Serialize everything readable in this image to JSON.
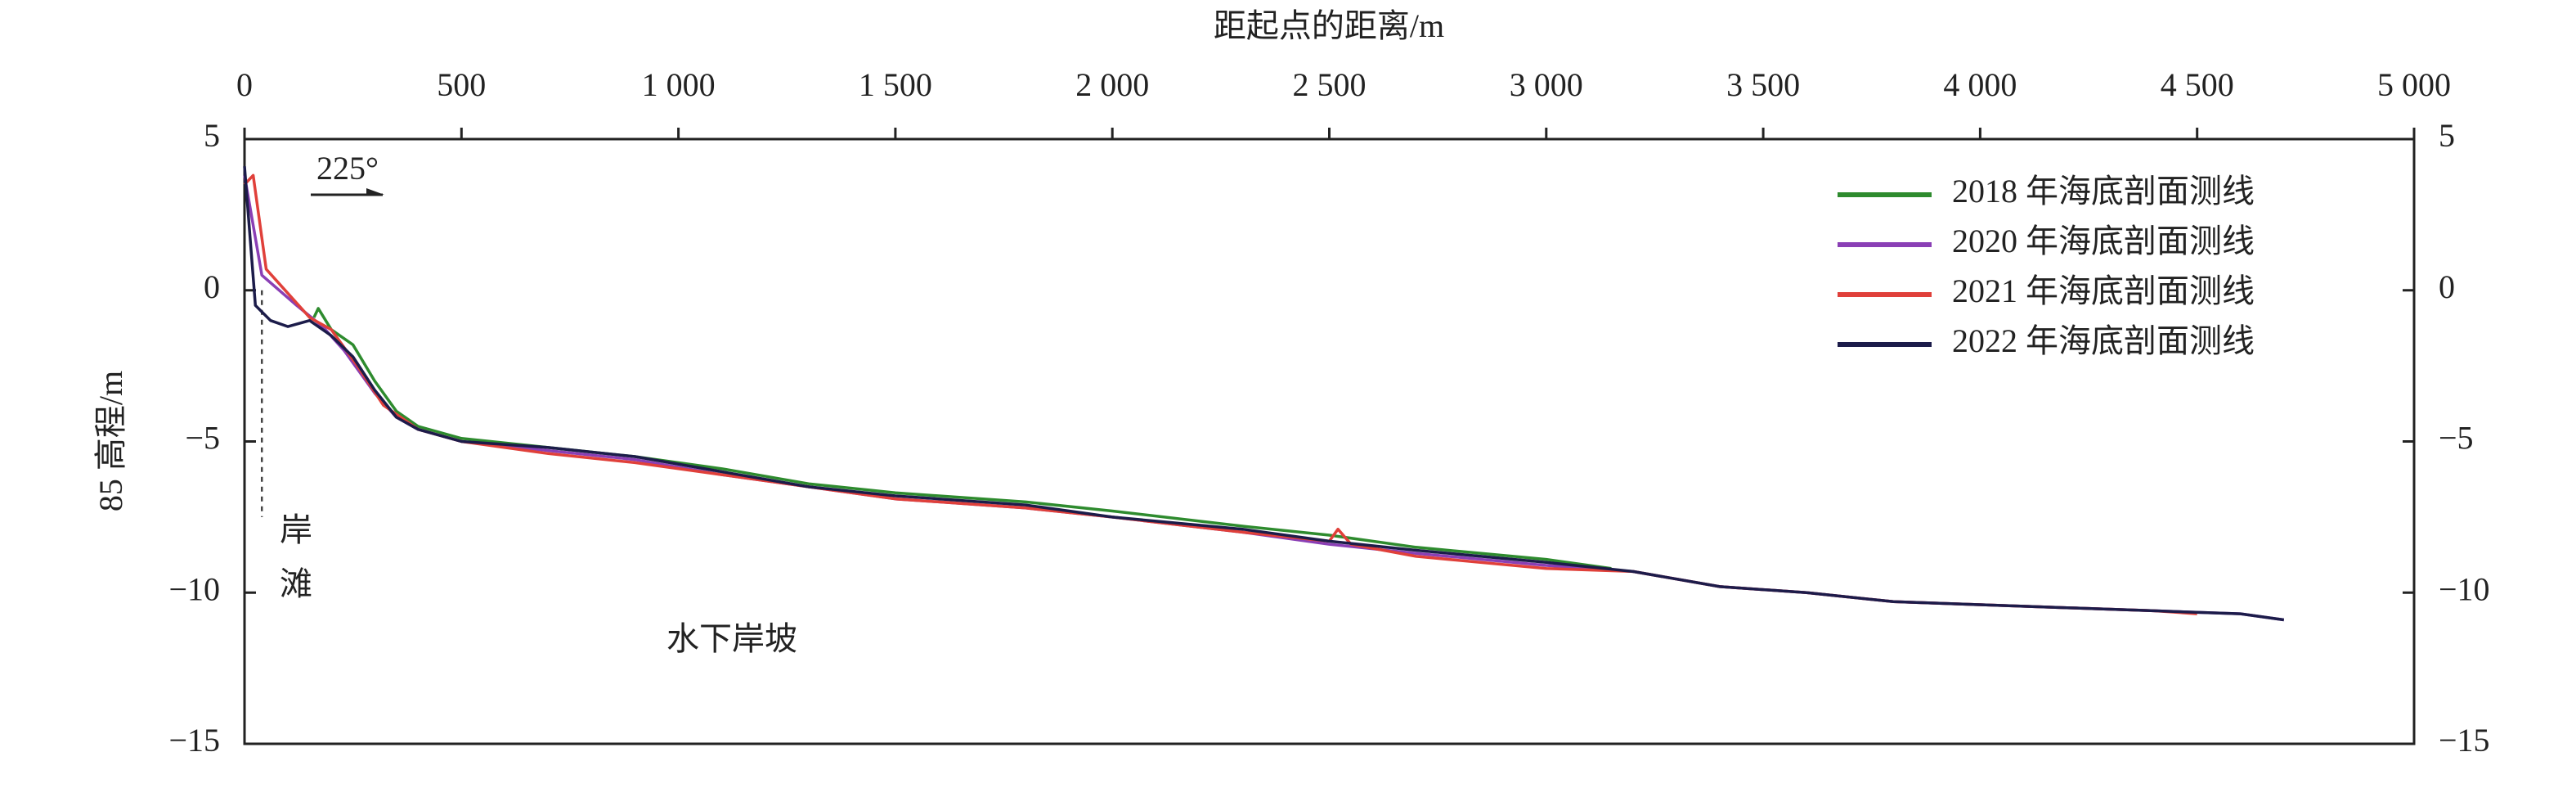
{
  "chart_data": {
    "type": "line",
    "title": "距起点的距离/m",
    "y_label": "85 高程/m",
    "xlim": [
      0,
      5000
    ],
    "xticks": [
      0,
      500,
      {
        "value": 1000,
        "label": "1 000"
      },
      {
        "value": 1500,
        "label": "1 500"
      },
      {
        "value": 2000,
        "label": "2 000"
      },
      {
        "value": 2500,
        "label": "2 500"
      },
      {
        "value": 3000,
        "label": "3 000"
      },
      {
        "value": 3500,
        "label": "3 500"
      },
      {
        "value": 4000,
        "label": "4 000"
      },
      {
        "value": 4500,
        "label": "4 500"
      },
      {
        "value": 5000,
        "label": "5 000"
      }
    ],
    "ylim": [
      -15,
      5
    ],
    "yticks": [
      5,
      0,
      {
        "value": -5,
        "label": "−5"
      },
      {
        "value": -10,
        "label": "−10"
      },
      {
        "value": -15,
        "label": "−15"
      }
    ],
    "legend": "upper right",
    "annotations": [
      "225°",
      "岸",
      "滩",
      "水下岸坡"
    ],
    "series": [
      {
        "name": "2018 年海底剖面测线",
        "color": "#2e8b2e",
        "x": [
          160,
          170,
          200,
          250,
          300,
          350,
          400,
          500,
          700,
          900,
          1100,
          1300,
          1500,
          1800,
          2000,
          2300,
          2500,
          2700,
          3000,
          3150
        ],
        "values": [
          -0.9,
          -0.6,
          -1.3,
          -1.8,
          -3.0,
          -4.0,
          -4.5,
          -4.9,
          -5.2,
          -5.5,
          -5.9,
          -6.4,
          -6.7,
          -7.0,
          -7.3,
          -7.8,
          -8.1,
          -8.5,
          -8.9,
          -9.2
        ]
      },
      {
        "name": "2020 年海底剖面测线",
        "color": "#8a3fb5",
        "x": [
          0,
          40,
          120,
          180,
          230,
          300,
          350,
          400,
          500,
          700,
          900,
          1100,
          1300,
          1500,
          1800,
          2000,
          2300,
          2500,
          2700,
          3000,
          3200,
          3400,
          3600,
          3800,
          4000,
          4200,
          4400,
          4600,
          4700
        ],
        "values": [
          3.8,
          0.5,
          -0.5,
          -1.2,
          -2.0,
          -3.4,
          -4.2,
          -4.6,
          -5.0,
          -5.3,
          -5.6,
          -6.1,
          -6.5,
          -6.9,
          -7.2,
          -7.5,
          -8.0,
          -8.4,
          -8.7,
          -9.1,
          -9.3,
          -9.8,
          -10.0,
          -10.3,
          -10.4,
          -10.5,
          -10.6,
          -10.7,
          -10.9
        ]
      },
      {
        "name": "2021 年海底剖面测线",
        "color": "#e0403a",
        "x": [
          0,
          20,
          50,
          150,
          200,
          260,
          320,
          400,
          500,
          700,
          900,
          1100,
          1300,
          1500,
          1800,
          2000,
          2300,
          2500,
          2520,
          2550,
          2700,
          3000,
          3200,
          3400,
          3600,
          3800,
          4000,
          4200,
          4400,
          4500
        ],
        "values": [
          3.5,
          3.8,
          0.7,
          -0.9,
          -1.3,
          -2.5,
          -3.8,
          -4.6,
          -5.0,
          -5.4,
          -5.7,
          -6.1,
          -6.5,
          -6.9,
          -7.2,
          -7.5,
          -8.0,
          -8.3,
          -7.9,
          -8.4,
          -8.8,
          -9.2,
          -9.3,
          -9.8,
          -10.0,
          -10.3,
          -10.4,
          -10.5,
          -10.6,
          -10.7
        ]
      },
      {
        "name": "2022 年海底剖面测线",
        "color": "#1c1c4a",
        "x": [
          0,
          25,
          60,
          100,
          150,
          200,
          250,
          300,
          350,
          400,
          500,
          700,
          900,
          1100,
          1300,
          1500,
          1800,
          2000,
          2300,
          2500,
          2700,
          3000,
          3200,
          3400,
          3600,
          3800,
          4000,
          4200,
          4400,
          4600,
          4700
        ],
        "values": [
          4.1,
          -0.5,
          -1.0,
          -1.2,
          -1.0,
          -1.5,
          -2.2,
          -3.3,
          -4.2,
          -4.6,
          -5.0,
          -5.2,
          -5.5,
          -6.0,
          -6.5,
          -6.8,
          -7.1,
          -7.5,
          -7.9,
          -8.3,
          -8.6,
          -9.0,
          -9.3,
          -9.8,
          -10.0,
          -10.3,
          -10.4,
          -10.5,
          -10.6,
          -10.7,
          -10.9
        ]
      }
    ]
  }
}
